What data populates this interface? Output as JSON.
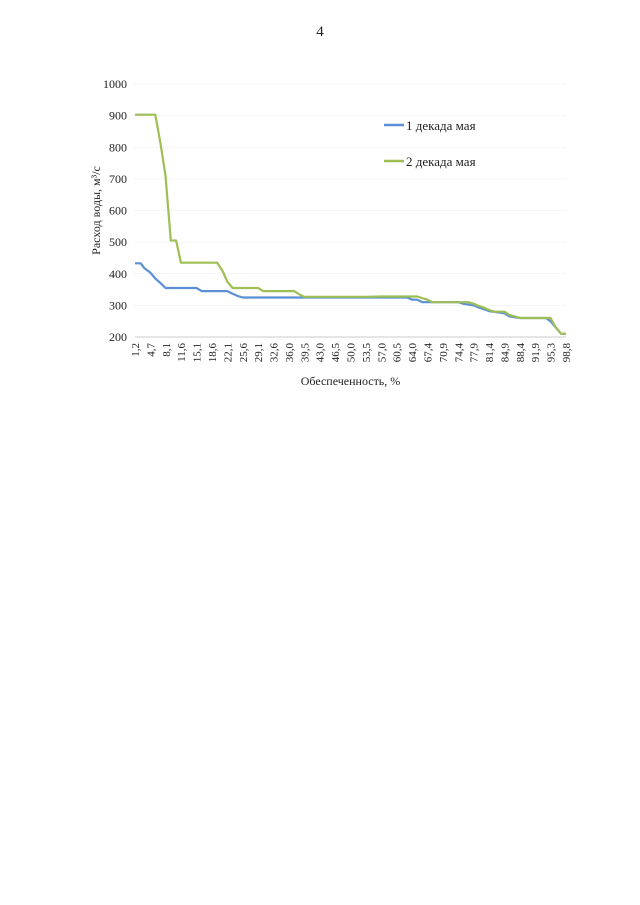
{
  "page": {
    "number": "4"
  },
  "chart_data": {
    "type": "line",
    "xlabel": "Обеспеченность, %",
    "ylabel": "Расход воды, м³/с",
    "ylim": [
      200,
      1000
    ],
    "yticks": [
      200,
      300,
      400,
      500,
      600,
      700,
      800,
      900,
      1000
    ],
    "grid": true,
    "legend": "top-right",
    "x_tick_labels": [
      "1,2",
      "4,7",
      "8,1",
      "11,6",
      "15,1",
      "18,6",
      "22,1",
      "25,6",
      "29,1",
      "32,6",
      "36,0",
      "39,5",
      "43,0",
      "46,5",
      "50,0",
      "53,5",
      "57,0",
      "60,5",
      "64,0",
      "67,4",
      "70,9",
      "74,4",
      "77,9",
      "81,4",
      "84,9",
      "88,4",
      "91,9",
      "95,3",
      "98,8"
    ],
    "series": [
      {
        "name": "1 декада мая",
        "color": "#5b8fd6",
        "x": [
          1.2,
          2.5,
          3.3,
          4.7,
          5.8,
          7.0,
          8.1,
          9.5,
          11.6,
          15.1,
          16.3,
          18.6,
          22.1,
          23.3,
          24.4,
          25.6,
          29.1,
          32.6,
          36.0,
          39.5,
          43.0,
          46.5,
          50.0,
          53.5,
          57.0,
          60.5,
          62.8,
          64.0,
          65.1,
          66.3,
          67.4,
          70.9,
          74.4,
          75.6,
          77.9,
          79.1,
          80.2,
          81.4,
          84.9,
          86.0,
          88.4,
          91.9,
          93.0,
          94.2,
          95.3,
          96.5,
          97.7,
          98.8
        ],
        "y": [
          433,
          433,
          418,
          403,
          385,
          370,
          355,
          355,
          355,
          355,
          345,
          345,
          345,
          337,
          330,
          325,
          325,
          325,
          325,
          325,
          325,
          325,
          325,
          325,
          325,
          325,
          325,
          318,
          318,
          310,
          310,
          310,
          310,
          305,
          300,
          293,
          288,
          282,
          275,
          265,
          260,
          260,
          260,
          260,
          250,
          230,
          210,
          210
        ]
      },
      {
        "name": "2 декада мая",
        "color": "#9ebf53",
        "x": [
          1.2,
          2.4,
          3.5,
          4.7,
          5.8,
          7.0,
          8.1,
          9.3,
          10.5,
          11.6,
          12.8,
          15.1,
          18.6,
          19.8,
          21.0,
          22.1,
          23.3,
          25.6,
          29.1,
          30.2,
          32.6,
          36.0,
          37.2,
          38.4,
          39.5,
          43.0,
          46.5,
          50.0,
          53.5,
          57.0,
          60.5,
          62.8,
          64.0,
          65.1,
          67.4,
          68.6,
          70.9,
          74.4,
          76.7,
          77.9,
          79.1,
          80.2,
          81.4,
          82.6,
          84.9,
          86.0,
          88.4,
          91.9,
          93.0,
          94.2,
          95.3,
          96.5,
          97.7,
          98.8
        ],
        "y": [
          903,
          903,
          903,
          903,
          903,
          810,
          710,
          505,
          505,
          435,
          435,
          435,
          435,
          435,
          410,
          375,
          355,
          355,
          355,
          345,
          345,
          345,
          345,
          335,
          327,
          327,
          327,
          327,
          327,
          328,
          328,
          328,
          328,
          328,
          318,
          310,
          310,
          310,
          310,
          305,
          298,
          293,
          285,
          280,
          280,
          270,
          260,
          260,
          260,
          260,
          260,
          230,
          210,
          210
        ]
      }
    ]
  }
}
